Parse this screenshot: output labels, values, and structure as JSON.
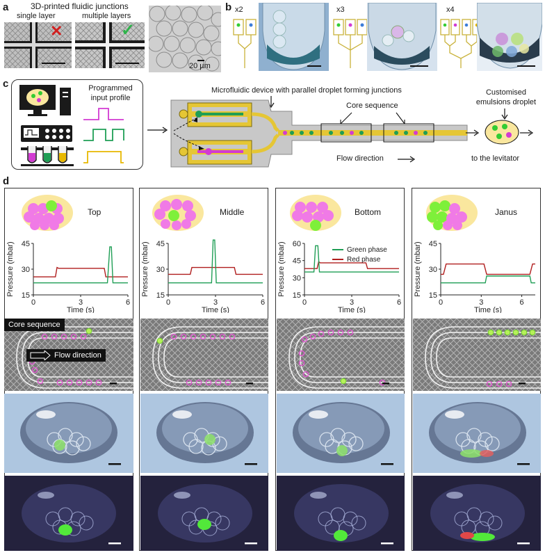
{
  "panel_a": {
    "letter": "a",
    "title": "3D-printed fluidic junctions",
    "single_label": "single layer",
    "multi_label": "multiple layers",
    "scale_label": "20 µm"
  },
  "panel_b": {
    "letter": "b",
    "labels": [
      "x2",
      "x3",
      "x4"
    ]
  },
  "panel_c": {
    "letter": "c",
    "input_profile_label": "Programmed input profile",
    "device_label": "Microfluidic device with parallel droplet forming junctions",
    "core_sequence_label": "Core sequence",
    "customised_label": "Customised emulsions droplet",
    "flow_direction_label": "Flow direction",
    "levitator_label": "to the levitator"
  },
  "panel_d": {
    "letter": "d",
    "columns": [
      {
        "title": "Top"
      },
      {
        "title": "Middle"
      },
      {
        "title": "Bottom"
      },
      {
        "title": "Janus"
      }
    ],
    "core_sequence_tag": "Core sequence",
    "flow_direction_tag": "Flow direction",
    "ylabel": "Pressure (mbar)",
    "xlabel": "Time (s)",
    "legend_green": "Green phase",
    "legend_red": "Red phase"
  },
  "colors": {
    "green": "#1f9e55",
    "red": "#b01d1d",
    "magenta": "#d23bd2",
    "yellow": "#e8b800",
    "droplet_green": "#7ef03a",
    "droplet_pink": "#f07ae6",
    "droplet_bg": "#fae79e"
  },
  "chart_data": [
    {
      "type": "line",
      "name": "Top",
      "xlabel": "Time (s)",
      "ylabel": "Pressure (mbar)",
      "xlim": [
        0,
        6
      ],
      "ylim": [
        15,
        45
      ],
      "xticks": [
        0,
        3,
        6
      ],
      "yticks": [
        15,
        30,
        45
      ],
      "series": [
        {
          "color": "#b01d1d",
          "x": [
            0,
            1.4,
            1.5,
            1.6,
            4.5,
            4.6,
            6
          ],
          "y": [
            25.5,
            25.5,
            31,
            30.5,
            30.5,
            25.5,
            25.5
          ]
        },
        {
          "color": "#1f9e55",
          "x": [
            0,
            4.7,
            4.85,
            4.95,
            5.05,
            6
          ],
          "y": [
            22,
            22,
            43,
            43,
            22,
            22
          ]
        }
      ]
    },
    {
      "type": "line",
      "name": "Middle",
      "xlabel": "Time (s)",
      "ylabel": "Pressure (mbar)",
      "xlim": [
        0,
        6
      ],
      "ylim": [
        15,
        45
      ],
      "xticks": [
        0,
        3,
        6
      ],
      "yticks": [
        15,
        30,
        45
      ],
      "series": [
        {
          "color": "#b01d1d",
          "x": [
            0,
            1.4,
            1.5,
            4.2,
            4.3,
            6
          ],
          "y": [
            27,
            27,
            31,
            31,
            27,
            27
          ]
        },
        {
          "color": "#1f9e55",
          "x": [
            0,
            2.75,
            2.85,
            2.95,
            3.05,
            6
          ],
          "y": [
            22,
            22,
            47,
            47,
            22,
            22
          ]
        }
      ]
    },
    {
      "type": "line",
      "name": "Bottom",
      "xlabel": "Time (s)",
      "ylabel": "Pressure (mbar)",
      "xlim": [
        0,
        6
      ],
      "ylim": [
        15,
        60
      ],
      "xticks": [
        0,
        3,
        6
      ],
      "yticks": [
        15,
        30,
        45,
        60
      ],
      "series": [
        {
          "color": "#b01d1d",
          "name": "Red phase",
          "x": [
            0,
            0.8,
            0.9,
            1.0,
            3.9,
            4.0,
            6
          ],
          "y": [
            38,
            38,
            44,
            43,
            43,
            38,
            38
          ]
        },
        {
          "color": "#1f9e55",
          "name": "Green phase",
          "x": [
            0,
            0.6,
            0.7,
            0.85,
            0.95,
            6
          ],
          "y": [
            35,
            35,
            58,
            58,
            35,
            35
          ]
        }
      ]
    },
    {
      "type": "line",
      "name": "Janus",
      "xlabel": "Time (s)",
      "ylabel": "Pressure (mbar)",
      "xlim": [
        0,
        7
      ],
      "ylim": [
        15,
        45
      ],
      "xticks": [
        0,
        3,
        6
      ],
      "yticks": [
        15,
        30,
        45
      ],
      "series": [
        {
          "color": "#b01d1d",
          "x": [
            0,
            0.2,
            0.4,
            3.2,
            3.4,
            6.6,
            6.8,
            7
          ],
          "y": [
            27,
            27,
            33,
            33,
            27,
            27,
            33,
            33
          ]
        },
        {
          "color": "#1f9e55",
          "x": [
            0,
            0.3,
            3.3,
            3.4,
            6.6,
            6.7,
            7
          ],
          "y": [
            22,
            22,
            22,
            26,
            26,
            22,
            22
          ]
        }
      ]
    }
  ]
}
